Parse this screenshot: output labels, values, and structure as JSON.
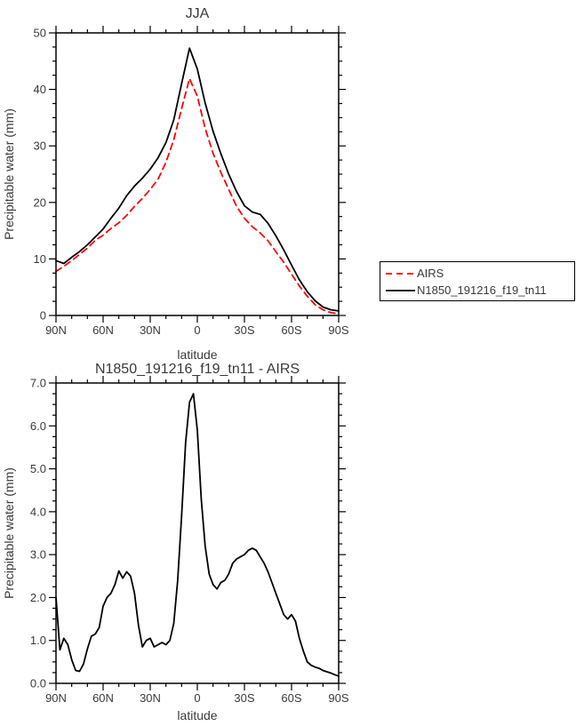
{
  "chart_data": [
    {
      "type": "line",
      "title": "JJA",
      "xlabel": "latitude",
      "ylabel": "Precipitable water (mm)",
      "xlim": [
        90,
        -90
      ],
      "ylim": [
        0,
        50
      ],
      "xticks": [
        90,
        60,
        30,
        0,
        -30,
        -60,
        -90
      ],
      "xtick_labels": [
        "90N",
        "60N",
        "30N",
        "0",
        "30S",
        "60S",
        "90S"
      ],
      "x_minor_step": 10,
      "yticks": [
        0,
        10,
        20,
        30,
        40,
        50
      ],
      "ytick_labels": [
        "0",
        "10",
        "20",
        "30",
        "40",
        "50"
      ],
      "y_minor_step": 2.5,
      "grid": false,
      "legend_position": "outside-right",
      "lats": [
        90,
        85,
        80,
        75,
        70,
        65,
        60,
        55,
        50,
        45,
        40,
        35,
        30,
        25,
        20,
        15,
        10,
        5,
        0,
        -5,
        -10,
        -15,
        -20,
        -25,
        -30,
        -35,
        -40,
        -45,
        -50,
        -55,
        -60,
        -65,
        -70,
        -75,
        -80,
        -85,
        -90
      ],
      "series": [
        {
          "name": "AIRS",
          "color": "#ff0000",
          "style": "dashed",
          "dash": "7 5",
          "values": [
            7.8,
            8.7,
            9.7,
            10.8,
            11.9,
            13.3,
            14.2,
            15.4,
            16.4,
            17.7,
            19.3,
            20.7,
            22.3,
            24.1,
            27.1,
            31.1,
            36.6,
            41.9,
            38.8,
            33.1,
            28.7,
            25.3,
            22.3,
            19.3,
            17.2,
            15.7,
            14.6,
            13.2,
            11.3,
            9.4,
            7.3,
            5.2,
            3.4,
            1.9,
            1.0,
            0.5,
            0.3
          ]
        },
        {
          "name": "N1850_191216_f19_tn11",
          "color": "#000000",
          "style": "solid",
          "dash": "",
          "values": [
            9.7,
            9.2,
            10.3,
            11.3,
            12.5,
            13.9,
            15.3,
            17.2,
            19.0,
            21.2,
            22.9,
            24.3,
            25.9,
            27.9,
            30.6,
            34.6,
            41.0,
            47.3,
            43.6,
            37.6,
            32.6,
            28.6,
            25.0,
            21.9,
            19.4,
            18.3,
            17.9,
            16.3,
            14.1,
            11.6,
            8.9,
            6.3,
            4.2,
            2.6,
            1.5,
            1.0,
            0.8
          ]
        }
      ]
    },
    {
      "type": "line",
      "title": "N1850_191216_f19_tn11 - AIRS",
      "xlabel": "latitude",
      "ylabel": "Precipitable water (mm)",
      "xlim": [
        90,
        -90
      ],
      "ylim": [
        0,
        7
      ],
      "xticks": [
        90,
        60,
        30,
        0,
        -30,
        -60,
        -90
      ],
      "xtick_labels": [
        "90N",
        "60N",
        "30N",
        "0",
        "30S",
        "60S",
        "90S"
      ],
      "x_minor_step": 10,
      "yticks": [
        0,
        1,
        2,
        3,
        4,
        5,
        6,
        7
      ],
      "ytick_labels": [
        "0.0",
        "1.0",
        "2.0",
        "3.0",
        "4.0",
        "5.0",
        "6.0",
        "7.0"
      ],
      "y_minor_step": 0.25,
      "grid": false,
      "legend_position": "none",
      "lats": [
        90,
        87.5,
        85,
        82.5,
        80,
        77.5,
        75,
        72.5,
        70,
        67.5,
        65,
        62.5,
        60,
        57.5,
        55,
        52.5,
        50,
        47.5,
        45,
        42.5,
        40,
        37.5,
        35,
        32.5,
        30,
        27.5,
        25,
        22.5,
        20,
        17.5,
        15,
        12.5,
        10,
        7.5,
        5,
        2.5,
        0,
        -2.5,
        -5,
        -7.5,
        -10,
        -12.5,
        -15,
        -17.5,
        -20,
        -22.5,
        -25,
        -27.5,
        -30,
        -32.5,
        -35,
        -37.5,
        -40,
        -42.5,
        -45,
        -47.5,
        -50,
        -52.5,
        -55,
        -57.5,
        -60,
        -62.5,
        -65,
        -67.5,
        -70,
        -72.5,
        -75,
        -77.5,
        -80,
        -82.5,
        -85,
        -87.5,
        -90
      ],
      "series": [
        {
          "name": "N1850_191216_f19_tn11 - AIRS",
          "color": "#000000",
          "style": "solid",
          "dash": "",
          "values": [
            2.0,
            0.78,
            1.05,
            0.9,
            0.55,
            0.3,
            0.28,
            0.45,
            0.8,
            1.1,
            1.15,
            1.3,
            1.8,
            2.0,
            2.1,
            2.3,
            2.62,
            2.45,
            2.6,
            2.5,
            2.1,
            1.35,
            0.85,
            1.0,
            1.05,
            0.85,
            0.9,
            0.95,
            0.9,
            1.0,
            1.4,
            2.4,
            3.9,
            5.6,
            6.55,
            6.75,
            5.9,
            4.3,
            3.2,
            2.55,
            2.3,
            2.2,
            2.35,
            2.4,
            2.55,
            2.8,
            2.9,
            2.95,
            3.0,
            3.1,
            3.15,
            3.1,
            2.95,
            2.8,
            2.6,
            2.35,
            2.1,
            1.85,
            1.6,
            1.5,
            1.6,
            1.45,
            1.05,
            0.75,
            0.5,
            0.42,
            0.38,
            0.35,
            0.3,
            0.27,
            0.24,
            0.2,
            0.17
          ]
        }
      ]
    }
  ]
}
